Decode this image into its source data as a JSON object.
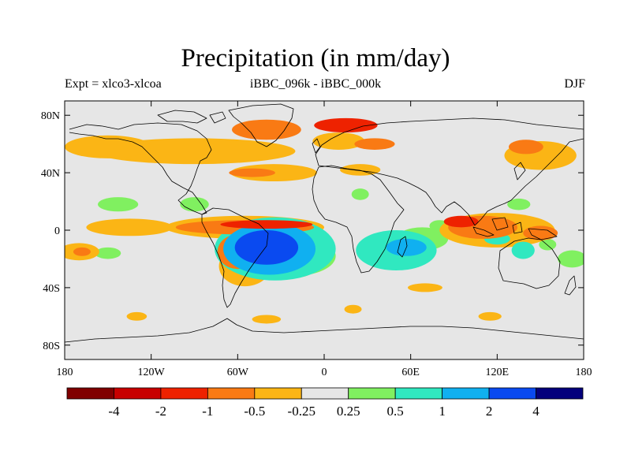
{
  "chart_data": {
    "type": "heatmap",
    "title": "Precipitation (in mm/day)",
    "subtitle_left": "Expt = xlco3-xlcoa",
    "subtitle_center": "iBBC_096k - iBBC_000k",
    "subtitle_right": "DJF",
    "x_ticks": [
      "180",
      "120W",
      "60W",
      "0",
      "60E",
      "120E",
      "180"
    ],
    "y_ticks": [
      "80N",
      "40N",
      "0",
      "40S",
      "80S"
    ],
    "x_range": [
      -180,
      180
    ],
    "y_range": [
      -90,
      90
    ],
    "colorbar": {
      "labels": [
        "-4",
        "-2",
        "-1",
        "-0.5",
        "-0.25",
        "0.25",
        "0.5",
        "1",
        "2",
        "4"
      ],
      "colors": [
        "#800000",
        "#c80000",
        "#ee2200",
        "#f97a14",
        "#fbb515",
        "#e6e6e6",
        "#80f060",
        "#30e8c0",
        "#10b0f0",
        "#0a4af0",
        "#04007c"
      ]
    },
    "colors": {
      "background": "#e6e6e6",
      "coast": "#000000"
    },
    "anomaly_regions": [
      {
        "level": 4,
        "lon": -40,
        "lat": -12,
        "rx": 22,
        "ry": 12
      },
      {
        "level": 3,
        "lon": -38,
        "lat": -13,
        "rx": 32,
        "ry": 18
      },
      {
        "level": 2,
        "lon": -34,
        "lat": -13,
        "rx": 42,
        "ry": 22
      },
      {
        "level": 1,
        "lon": -22,
        "lat": -18,
        "rx": 30,
        "ry": 14
      },
      {
        "level": 2,
        "lon": 50,
        "lat": -14,
        "rx": 28,
        "ry": 14
      },
      {
        "level": 3,
        "lon": 57,
        "lat": -12,
        "rx": 14,
        "ry": 6
      },
      {
        "level": 1,
        "lon": 68,
        "lat": -6,
        "rx": 18,
        "ry": 8
      },
      {
        "level": 2,
        "lon": 138,
        "lat": -14,
        "rx": 8,
        "ry": 6
      },
      {
        "level": 2,
        "lon": 120,
        "lat": -6,
        "rx": 9,
        "ry": 4
      },
      {
        "level": 1,
        "lon": 172,
        "lat": -20,
        "rx": 10,
        "ry": 6
      },
      {
        "level": 1,
        "lon": -143,
        "lat": 18,
        "rx": 14,
        "ry": 5
      },
      {
        "level": 1,
        "lon": -90,
        "lat": 18,
        "rx": 10,
        "ry": 5
      },
      {
        "level": 1,
        "lon": -150,
        "lat": -16,
        "rx": 9,
        "ry": 4
      },
      {
        "level": 1,
        "lon": 25,
        "lat": 25,
        "rx": 6,
        "ry": 4
      },
      {
        "level": 1,
        "lon": 80,
        "lat": 3,
        "rx": 7,
        "ry": 4
      },
      {
        "level": 1,
        "lon": 135,
        "lat": 18,
        "rx": 8,
        "ry": 4
      },
      {
        "level": 1,
        "lon": 155,
        "lat": -10,
        "rx": 6,
        "ry": 4
      },
      {
        "level": -1,
        "lon": -55,
        "lat": 2,
        "rx": 55,
        "ry": 8
      },
      {
        "level": -2,
        "lon": -55,
        "lat": 2,
        "rx": 48,
        "ry": 5
      },
      {
        "level": -3,
        "lon": -40,
        "lat": 4,
        "rx": 32,
        "ry": 3
      },
      {
        "level": -1,
        "lon": -55,
        "lat": -25,
        "rx": 18,
        "ry": 14
      },
      {
        "level": -2,
        "lon": -60,
        "lat": -15,
        "rx": 14,
        "ry": 12
      },
      {
        "level": -1,
        "lon": -135,
        "lat": 2,
        "rx": 30,
        "ry": 6
      },
      {
        "level": -1,
        "lon": -170,
        "lat": -15,
        "rx": 14,
        "ry": 6
      },
      {
        "level": -2,
        "lon": -168,
        "lat": -15,
        "rx": 6,
        "ry": 3
      },
      {
        "level": -1,
        "lon": 120,
        "lat": 0,
        "rx": 40,
        "ry": 12
      },
      {
        "level": -2,
        "lon": 110,
        "lat": 2,
        "rx": 24,
        "ry": 8
      },
      {
        "level": -3,
        "lon": 95,
        "lat": 6,
        "rx": 12,
        "ry": 4
      },
      {
        "level": -2,
        "lon": 150,
        "lat": -2,
        "rx": 12,
        "ry": 5
      },
      {
        "level": -1,
        "lon": -90,
        "lat": 55,
        "rx": 70,
        "ry": 9
      },
      {
        "level": -2,
        "lon": -40,
        "lat": 70,
        "rx": 24,
        "ry": 7
      },
      {
        "level": -3,
        "lon": 15,
        "lat": 73,
        "rx": 22,
        "ry": 5
      },
      {
        "level": -2,
        "lon": 35,
        "lat": 60,
        "rx": 14,
        "ry": 4
      },
      {
        "level": -1,
        "lon": -150,
        "lat": 58,
        "rx": 30,
        "ry": 8
      },
      {
        "level": -1,
        "lon": -35,
        "lat": 40,
        "rx": 30,
        "ry": 6
      },
      {
        "level": -2,
        "lon": -50,
        "lat": 40,
        "rx": 16,
        "ry": 3
      },
      {
        "level": -1,
        "lon": 150,
        "lat": 52,
        "rx": 25,
        "ry": 10
      },
      {
        "level": -2,
        "lon": 140,
        "lat": 58,
        "rx": 12,
        "ry": 5
      },
      {
        "level": -1,
        "lon": 25,
        "lat": 42,
        "rx": 14,
        "ry": 4
      },
      {
        "level": -1,
        "lon": 10,
        "lat": 62,
        "rx": 18,
        "ry": 6
      },
      {
        "level": -1,
        "lon": -20,
        "lat": -28,
        "rx": 12,
        "ry": 5
      },
      {
        "level": -1,
        "lon": -130,
        "lat": -60,
        "rx": 7,
        "ry": 3
      },
      {
        "level": -1,
        "lon": -40,
        "lat": -62,
        "rx": 10,
        "ry": 3
      },
      {
        "level": -1,
        "lon": 20,
        "lat": -55,
        "rx": 6,
        "ry": 3
      },
      {
        "level": -1,
        "lon": 115,
        "lat": -60,
        "rx": 8,
        "ry": 3
      },
      {
        "level": -1,
        "lon": 70,
        "lat": -40,
        "rx": 12,
        "ry": 3
      }
    ]
  }
}
